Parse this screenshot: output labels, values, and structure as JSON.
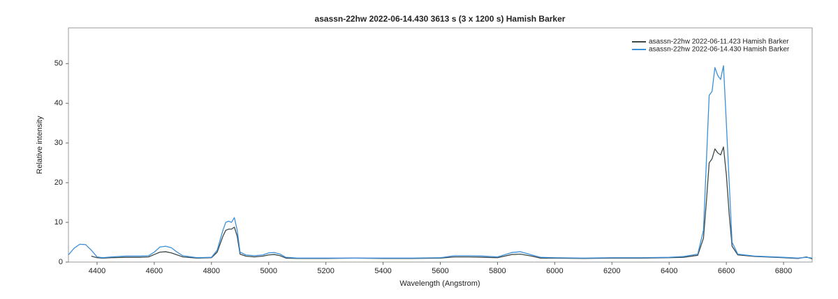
{
  "chart_data": {
    "type": "line",
    "title": "asassn-22hw  2022-06-14.430  3613 s (3 x 1200 s)  Hamish Barker",
    "x_label": "Wavelength (Angstrom)",
    "y_label": "Relative intensity",
    "x": [
      4300,
      4320,
      4340,
      4360,
      4380,
      4400,
      4420,
      4450,
      4500,
      4550,
      4580,
      4600,
      4620,
      4640,
      4660,
      4680,
      4700,
      4750,
      4800,
      4820,
      4840,
      4850,
      4860,
      4870,
      4880,
      4890,
      4900,
      4920,
      4950,
      4980,
      5000,
      5020,
      5040,
      5060,
      5100,
      5200,
      5300,
      5400,
      5500,
      5600,
      5650,
      5700,
      5750,
      5800,
      5850,
      5880,
      5920,
      5950,
      6000,
      6100,
      6200,
      6300,
      6400,
      6450,
      6500,
      6520,
      6530,
      6540,
      6550,
      6560,
      6570,
      6580,
      6590,
      6600,
      6610,
      6620,
      6640,
      6700,
      6800,
      6850,
      6880,
      6900
    ],
    "series": [
      {
        "name": "asassn-22hw  2022-06-11.423  Hamish Barker",
        "color": "#3c4848",
        "values": [
          null,
          null,
          null,
          null,
          1.5,
          1.1,
          1.0,
          1.1,
          1.2,
          1.2,
          1.3,
          1.9,
          2.5,
          2.6,
          2.3,
          1.8,
          1.3,
          1.0,
          1.1,
          2.5,
          6.5,
          8.0,
          8.3,
          8.3,
          8.8,
          6.5,
          2.0,
          1.5,
          1.3,
          1.5,
          1.8,
          1.9,
          1.6,
          1.0,
          0.9,
          0.9,
          1.0,
          0.9,
          0.9,
          1.0,
          1.3,
          1.3,
          1.2,
          1.1,
          1.9,
          2.0,
          1.5,
          1.0,
          1.0,
          0.9,
          1.0,
          1.0,
          1.1,
          1.2,
          1.7,
          6,
          15,
          25,
          26,
          28.5,
          27.5,
          27,
          29,
          22,
          12,
          4,
          1.8,
          1.4,
          1.1,
          0.9,
          1.3,
          0.8
        ]
      },
      {
        "name": "asassn-22hw  2022-06-14.430  Hamish Barker",
        "color": "#3b8fd9",
        "values": [
          1.8,
          3.5,
          4.5,
          4.4,
          3.0,
          1.3,
          1.1,
          1.3,
          1.5,
          1.5,
          1.6,
          2.5,
          3.8,
          4.0,
          3.6,
          2.5,
          1.6,
          1.1,
          1.2,
          3,
          8,
          10,
          10.3,
          10,
          11.2,
          8,
          2.5,
          1.8,
          1.6,
          1.8,
          2.3,
          2.4,
          2.0,
          1.2,
          1.0,
          1.0,
          1.0,
          1.0,
          1.0,
          1.1,
          1.6,
          1.6,
          1.5,
          1.3,
          2.4,
          2.6,
          1.8,
          1.2,
          1.1,
          1.0,
          1.1,
          1.1,
          1.2,
          1.4,
          2.0,
          8,
          25,
          42,
          43,
          49,
          47,
          46,
          49.5,
          35,
          20,
          5,
          2,
          1.5,
          1.2,
          1.0,
          1.2,
          1.0
        ]
      }
    ],
    "xlim": [
      4300,
      6900
    ],
    "ylim": [
      0,
      59
    ],
    "xticks": [
      4400,
      4600,
      4800,
      5000,
      5200,
      5400,
      5600,
      5800,
      6000,
      6200,
      6400,
      6600,
      6800
    ],
    "yticks": [
      0,
      10,
      20,
      30,
      40,
      50
    ],
    "legend": "top-right"
  }
}
